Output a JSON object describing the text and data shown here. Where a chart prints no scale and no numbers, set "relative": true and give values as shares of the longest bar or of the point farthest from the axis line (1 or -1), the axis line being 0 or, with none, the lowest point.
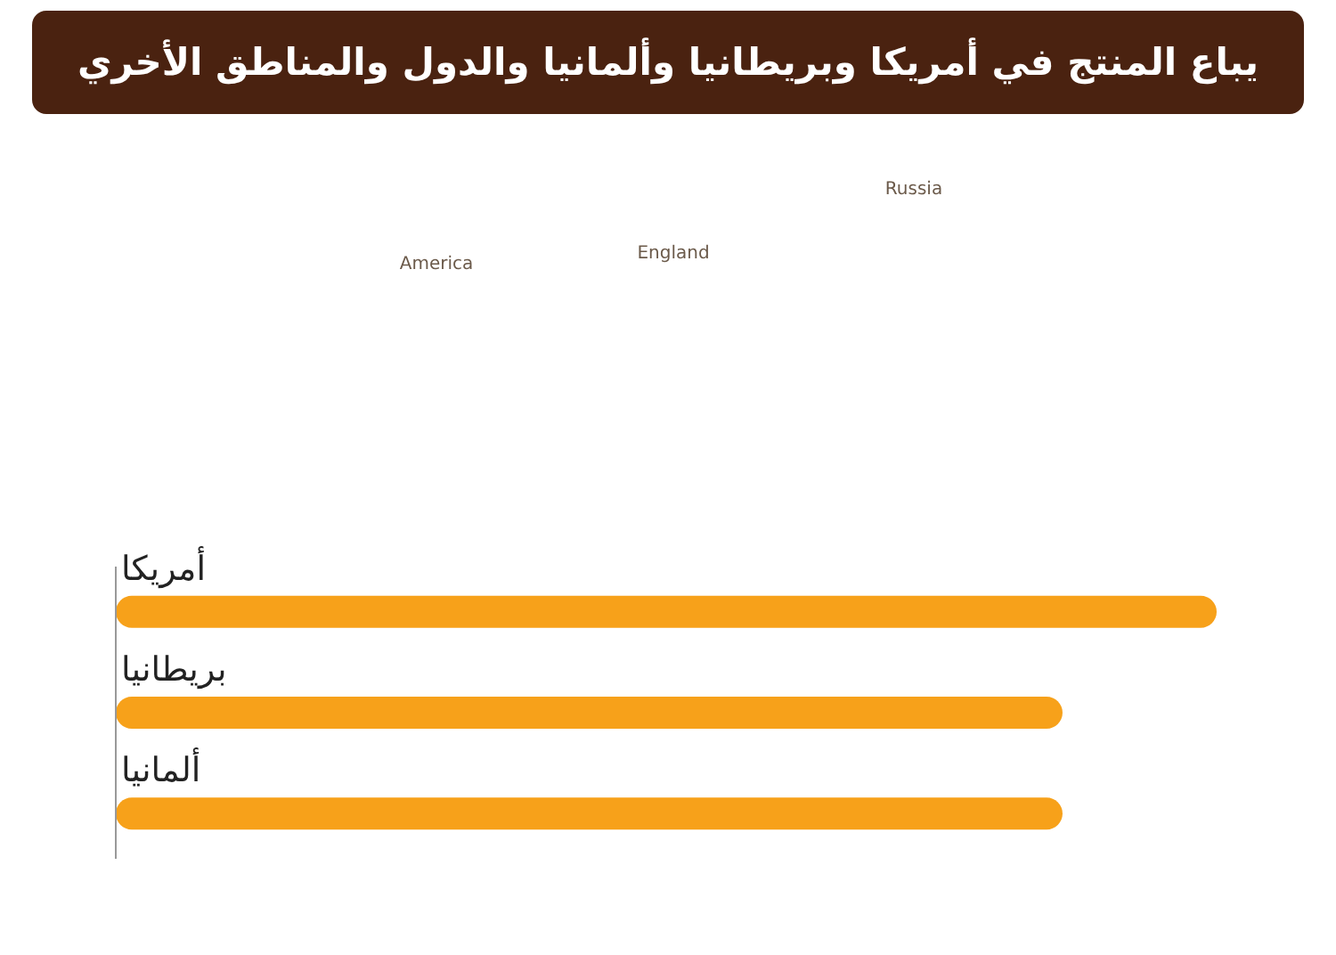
{
  "chart_data": {
    "type": "bar",
    "orientation": "horizontal",
    "relative": true,
    "title": "يباع المنتج في أمريكا وبريطانيا وألمانيا والدول والمناطق الأخري",
    "categories": [
      "أمريكا",
      "بريطانيا",
      "ألمانيا"
    ],
    "values": [
      1,
      0.86,
      0.86
    ],
    "color": "#f7a11a",
    "annotations": [
      "America",
      "England",
      "Russia"
    ]
  }
}
